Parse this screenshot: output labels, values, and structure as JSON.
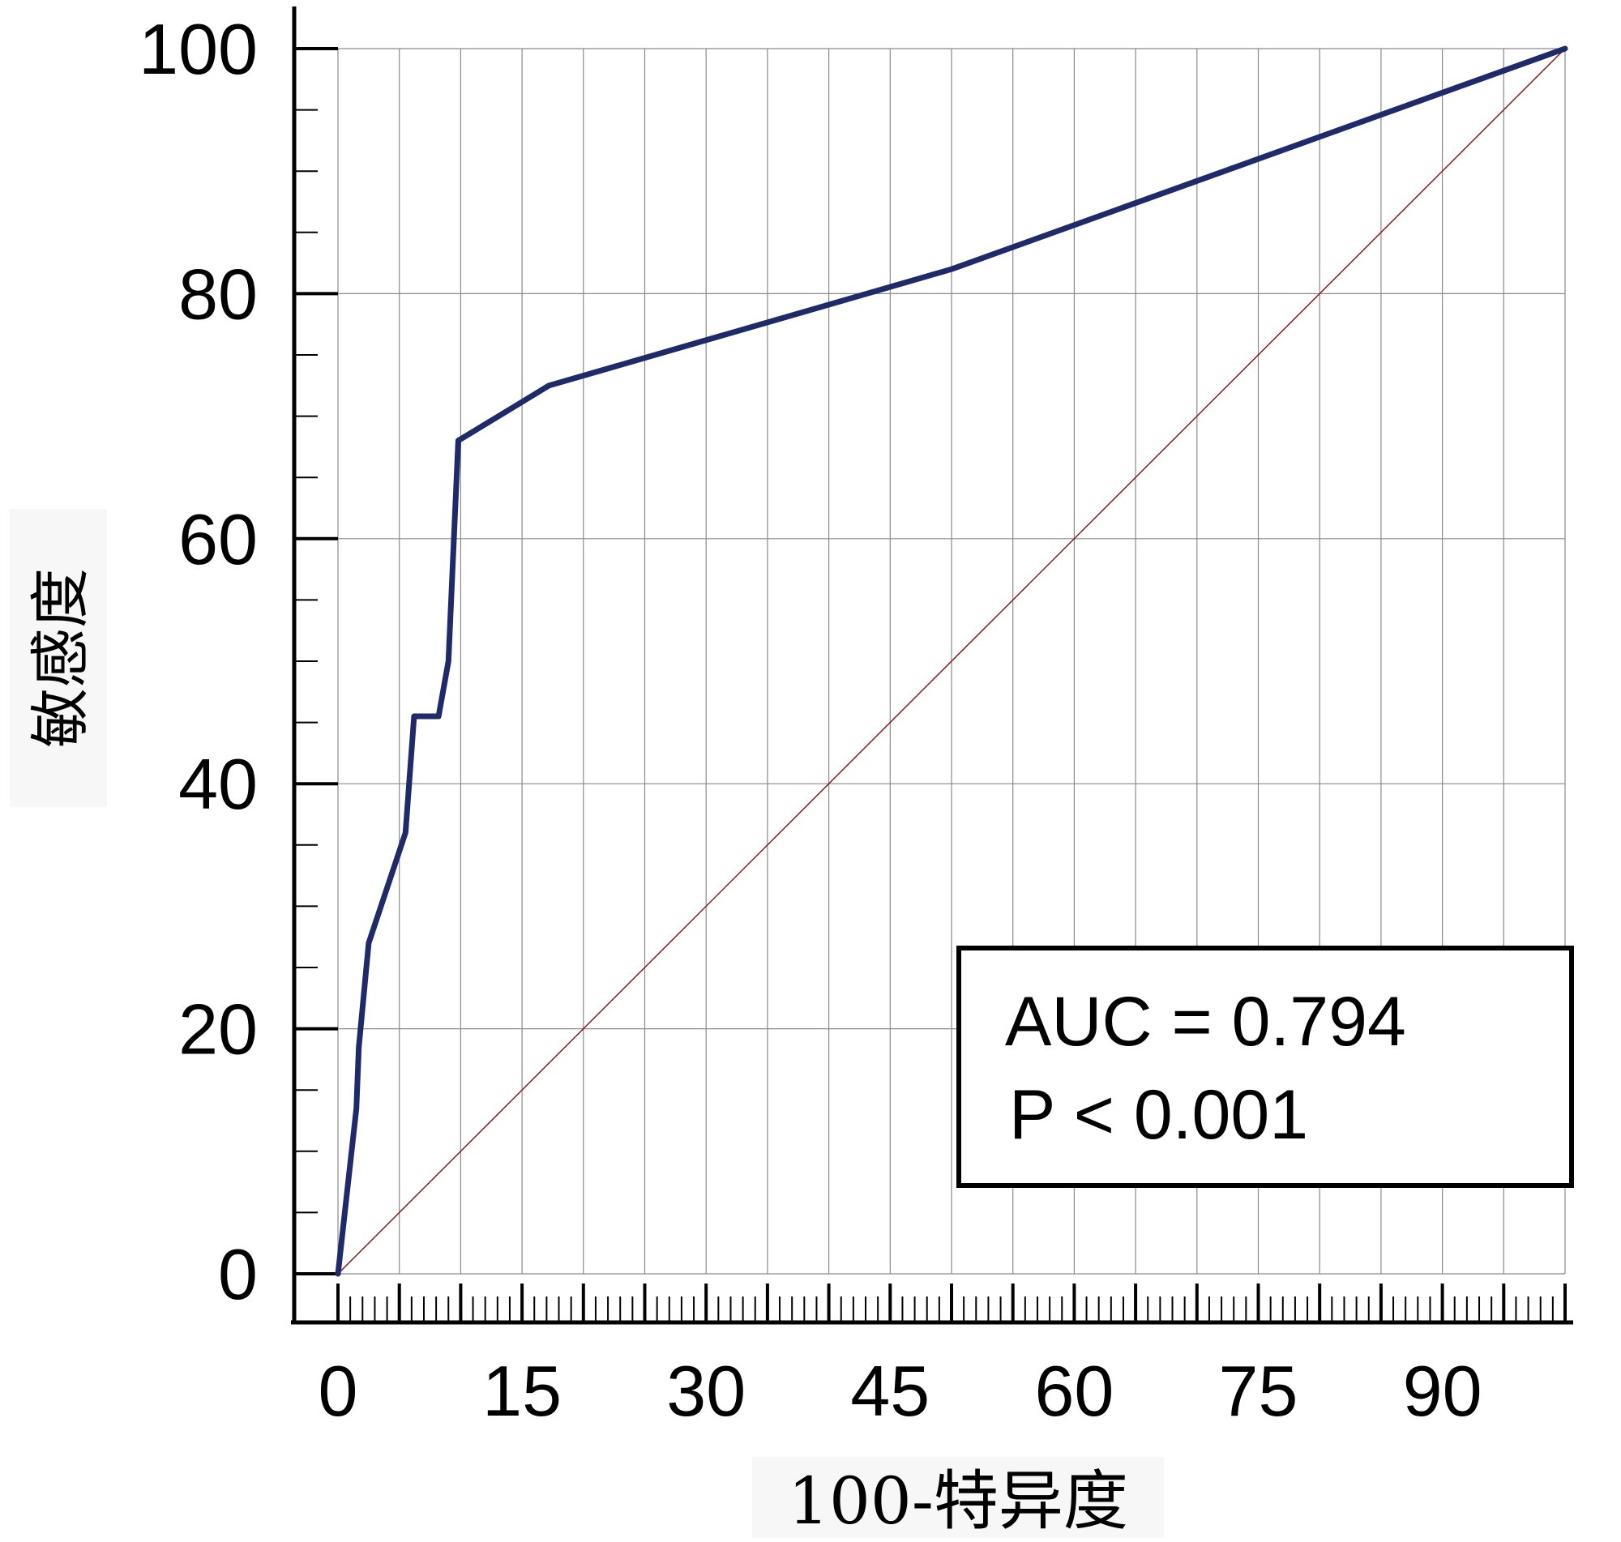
{
  "chart_data": {
    "type": "line",
    "xlabel": "100-特异度",
    "ylabel": "敏感度",
    "xlim": [
      0,
      100
    ],
    "ylim": [
      0,
      100
    ],
    "x_ticks": [
      0,
      15,
      30,
      45,
      60,
      75,
      90
    ],
    "y_ticks": [
      0,
      20,
      40,
      60,
      80,
      100
    ],
    "grid": true,
    "series": [
      {
        "name": "",
        "color": "#1f2a6b",
        "x": [
          0,
          1.5,
          1.7,
          2.5,
          5.5,
          6.2,
          8.2,
          9.0,
          9.8,
          17.2,
          50,
          100
        ],
        "y": [
          0,
          13.5,
          18.5,
          27,
          36,
          45.5,
          45.5,
          50,
          68,
          72.5,
          82,
          100
        ]
      },
      {
        "name": "",
        "color": "#8b1a1a",
        "x": [
          0,
          100
        ],
        "y": [
          0,
          100
        ]
      }
    ],
    "annotation": {
      "lines": [
        "AUC = 0.794",
        "P < 0.001"
      ]
    }
  }
}
